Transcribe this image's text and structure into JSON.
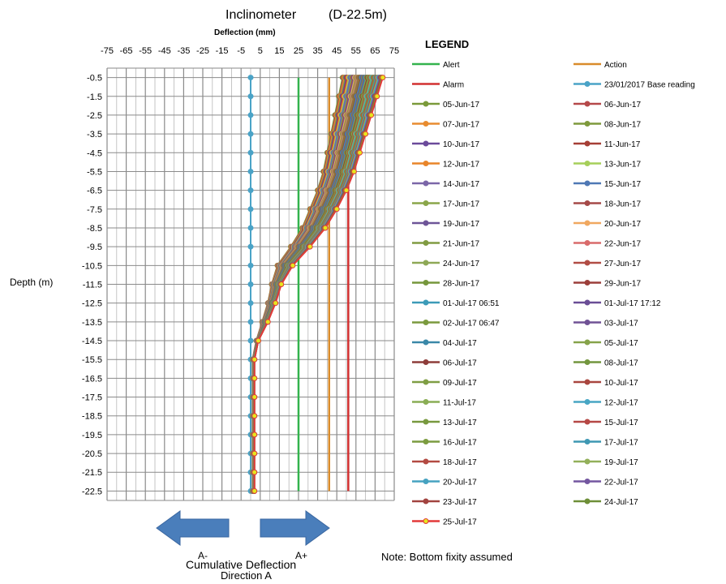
{
  "chart_data": {
    "type": "line",
    "title": "Inclinometer",
    "title_suffix": "(D-22.5m)",
    "xlabel": "Deflection (mm)",
    "ylabel": "Depth (m)",
    "xlim": [
      -75,
      75
    ],
    "ylim": [
      -0.5,
      -22.5
    ],
    "x_ticks": [
      "-75",
      "-65",
      "-55",
      "-45",
      "-35",
      "-25",
      "-15",
      "-5",
      "5",
      "15",
      "25",
      "35",
      "45",
      "55",
      "65",
      "75"
    ],
    "y_ticks": [
      "-0.5",
      "-1.5",
      "-2.5",
      "-3.5",
      "-4.5",
      "-5.5",
      "-6.5",
      "-7.5",
      "-8.5",
      "-9.5",
      "-10.5",
      "-11.5",
      "-12.5",
      "-13.5",
      "-14.5",
      "-15.5",
      "-16.5",
      "-17.5",
      "-18.5",
      "-19.5",
      "-20.5",
      "-21.5",
      "-22.5"
    ],
    "depths": [
      -0.5,
      -1.5,
      -2.5,
      -3.5,
      -4.5,
      -5.5,
      -6.5,
      -7.5,
      -8.5,
      -9.5,
      -10.5,
      -11.5,
      -12.5,
      -13.5,
      -14.5,
      -15.5,
      -16.5,
      -17.5,
      -18.5,
      -19.5,
      -20.5,
      -21.5,
      -22.5
    ],
    "grid": true,
    "legend_position": "right",
    "reference_lines": [
      {
        "name": "Alert",
        "x": 25,
        "color": "#33b34d"
      },
      {
        "name": "Action",
        "x": 41,
        "color": "#d98b2b"
      },
      {
        "name": "Alarm",
        "x": 51,
        "color": "#d23030"
      }
    ],
    "profiles": {
      "early": [
        48,
        46,
        44,
        42,
        40,
        38,
        35,
        31,
        27,
        21,
        14,
        11,
        9,
        6,
        3,
        1,
        1,
        1,
        1,
        1,
        1,
        1,
        1
      ],
      "late": [
        69,
        66,
        63,
        60,
        57,
        54,
        50,
        45,
        39,
        31,
        22,
        16,
        13,
        9,
        4,
        2,
        2,
        2,
        2,
        2,
        2,
        2,
        2
      ]
    },
    "series": [
      {
        "name": "23/01/2017 Base reading",
        "color": "#4aa3c7",
        "values": [
          0,
          0,
          0,
          0,
          0,
          0,
          0,
          0,
          0,
          0,
          0,
          0,
          0,
          0,
          0,
          0,
          0,
          0,
          0,
          0,
          0,
          0,
          0
        ]
      },
      {
        "name": "05-Jun-17",
        "color": "#7a9a3a",
        "k": 0
      },
      {
        "name": "06-Jun-17",
        "color": "#b5494a",
        "k": 0.5
      },
      {
        "name": "07-Jun-17",
        "color": "#e88c30",
        "k": 1
      },
      {
        "name": "08-Jun-17",
        "color": "#7f9a3d",
        "k": 1.5
      },
      {
        "name": "10-Jun-17",
        "color": "#6b4a9b",
        "k": 2
      },
      {
        "name": "11-Jun-17",
        "color": "#a63f36",
        "k": 2.5
      },
      {
        "name": "12-Jun-17",
        "color": "#e8852a",
        "k": 3
      },
      {
        "name": "13-Jun-17",
        "color": "#a6cf5a",
        "k": 3.5
      },
      {
        "name": "14-Jun-17",
        "color": "#7b66a8",
        "k": 4
      },
      {
        "name": "15-Jun-17",
        "color": "#4f78b5",
        "k": 4.5
      },
      {
        "name": "17-Jun-17",
        "color": "#8aa64a",
        "k": 5
      },
      {
        "name": "18-Jun-17",
        "color": "#a54a48",
        "k": 5.5
      },
      {
        "name": "19-Jun-17",
        "color": "#6e5598",
        "k": 6
      },
      {
        "name": "20-Jun-17",
        "color": "#f0a860",
        "k": 6.5
      },
      {
        "name": "21-Jun-17",
        "color": "#809b42",
        "k": 7
      },
      {
        "name": "22-Jun-17",
        "color": "#d96b6b",
        "k": 7.5
      },
      {
        "name": "24-Jun-17",
        "color": "#8ea856",
        "k": 8
      },
      {
        "name": "27-Jun-17",
        "color": "#b14d45",
        "k": 8.5
      },
      {
        "name": "28-Jun-17",
        "color": "#76973c",
        "k": 9
      },
      {
        "name": "29-Jun-17",
        "color": "#9c3f3a",
        "k": 9.5
      },
      {
        "name": "01-Jul-17 06:51",
        "color": "#3c9bb8",
        "k": 10
      },
      {
        "name": "01-Jul-17 17:12",
        "color": "#6a4e96",
        "k": 10.5
      },
      {
        "name": "02-Jul-17 06:47",
        "color": "#7b9a3e",
        "k": 11
      },
      {
        "name": "03-Jul-17",
        "color": "#705295",
        "k": 11.5
      },
      {
        "name": "04-Jul-17",
        "color": "#3a88a8",
        "k": 12
      },
      {
        "name": "05-Jul-17",
        "color": "#86a34a",
        "k": 12.5
      },
      {
        "name": "06-Jul-17",
        "color": "#8e3d3a",
        "k": 13
      },
      {
        "name": "08-Jul-17",
        "color": "#73963e",
        "k": 13.5
      },
      {
        "name": "09-Jul-17",
        "color": "#7f9e44",
        "k": 14
      },
      {
        "name": "10-Jul-17",
        "color": "#a9463f",
        "k": 14.5
      },
      {
        "name": "11-Jul-17",
        "color": "#8aad55",
        "k": 15
      },
      {
        "name": "12-Jul-17",
        "color": "#48a6c4",
        "k": 15.5
      },
      {
        "name": "13-Jul-17",
        "color": "#78993f",
        "k": 16
      },
      {
        "name": "15-Jul-17",
        "color": "#b64845",
        "k": 16.5
      },
      {
        "name": "16-Jul-17",
        "color": "#7c9c40",
        "k": 17
      },
      {
        "name": "17-Jul-17",
        "color": "#3f98b3",
        "k": 17.5
      },
      {
        "name": "18-Jul-17",
        "color": "#b34a42",
        "k": 18
      },
      {
        "name": "19-Jul-17",
        "color": "#93b05a",
        "k": 18.5
      },
      {
        "name": "20-Jul-17",
        "color": "#46a2c0",
        "k": 19
      },
      {
        "name": "22-Jul-17",
        "color": "#7457a0",
        "k": 19.5
      },
      {
        "name": "23-Jul-17",
        "color": "#a24340",
        "k": 20
      },
      {
        "name": "24-Jul-17",
        "color": "#6e8f38",
        "k": 20.5
      },
      {
        "name": "25-Jul-17",
        "color": "#e23a3a",
        "k": 21,
        "marker_fill": "#e6e61e"
      }
    ],
    "legend_title": "LEGEND",
    "legend_order": [
      "Alert",
      "Action",
      "Alarm",
      "23/01/2017 Base reading",
      "05-Jun-17",
      "06-Jun-17",
      "07-Jun-17",
      "08-Jun-17",
      "10-Jun-17",
      "11-Jun-17",
      "12-Jun-17",
      "13-Jun-17",
      "14-Jun-17",
      "15-Jun-17",
      "17-Jun-17",
      "18-Jun-17",
      "19-Jun-17",
      "20-Jun-17",
      "21-Jun-17",
      "22-Jun-17",
      "24-Jun-17",
      "27-Jun-17",
      "28-Jun-17",
      "29-Jun-17",
      "01-Jul-17 06:51",
      "01-Jul-17 17:12",
      "02-Jul-17 06:47",
      "03-Jul-17",
      "04-Jul-17",
      "05-Jul-17",
      "06-Jul-17",
      "08-Jul-17",
      "09-Jul-17",
      "10-Jul-17",
      "11-Jul-17",
      "12-Jul-17",
      "13-Jul-17",
      "15-Jul-17",
      "16-Jul-17",
      "17-Jul-17",
      "18-Jul-17",
      "19-Jul-17",
      "20-Jul-17",
      "22-Jul-17",
      "23-Jul-17",
      "24-Jul-17",
      "25-Jul-17"
    ],
    "arrow_left_label": "A-",
    "arrow_right_label": "A+",
    "arrow_color": "#4a7ebb",
    "bottom_label_1": "Cumulative Deflection",
    "bottom_label_2": "Direction A",
    "note": "Note: Bottom fixity assumed"
  }
}
